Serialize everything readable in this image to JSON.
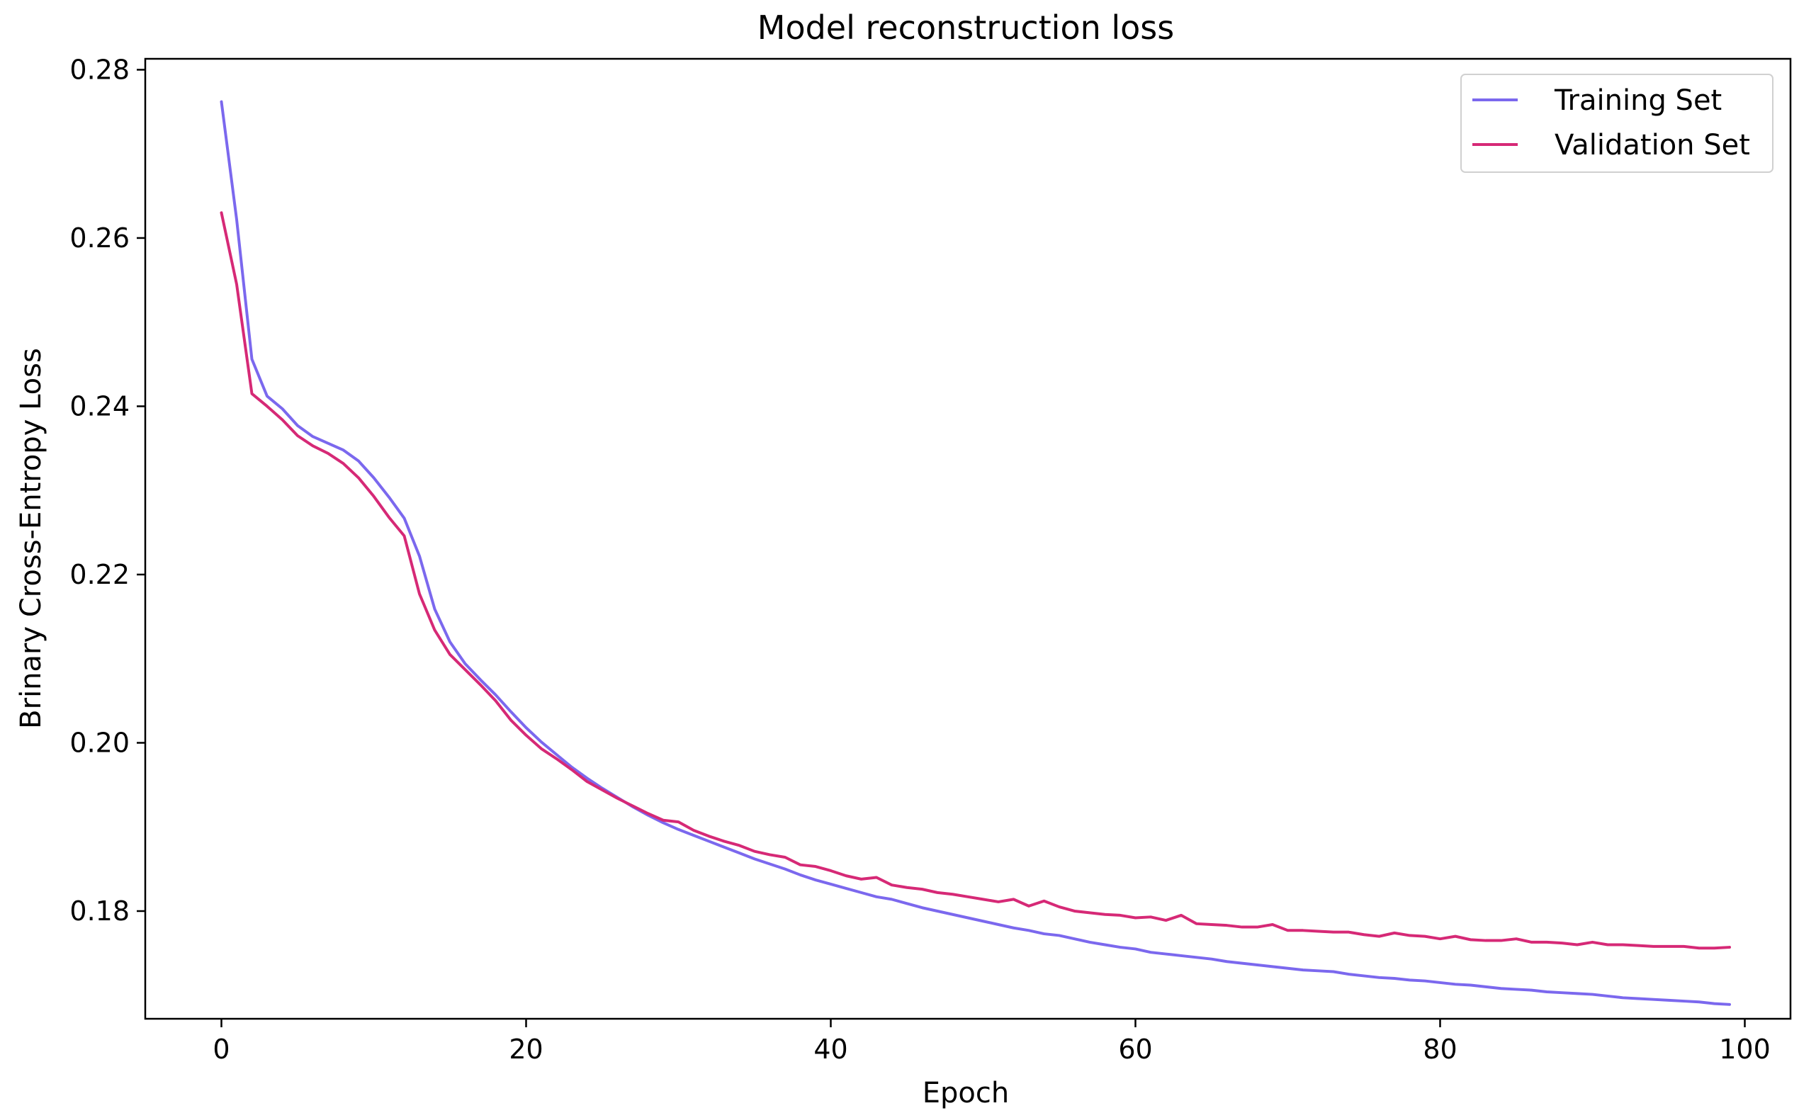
{
  "chart_data": {
    "type": "line",
    "title": "Model reconstruction loss",
    "xlabel": "Epoch",
    "ylabel": "Brinary Cross-Entropy Loss",
    "xlim": [
      -5,
      103
    ],
    "ylim": [
      0.1672,
      0.2813
    ],
    "xticks": [
      0,
      20,
      40,
      60,
      80,
      100
    ],
    "yticks": [
      0.18,
      0.2,
      0.22,
      0.24,
      0.26,
      0.28
    ],
    "ytick_labels": [
      "0.18",
      "0.20",
      "0.22",
      "0.24",
      "0.26",
      "0.28"
    ],
    "grid": false,
    "legend_position": "upper right",
    "series": [
      {
        "name": "Training Set",
        "color": "#7b68ee",
        "x": [
          0,
          1,
          2,
          3,
          4,
          5,
          6,
          7,
          8,
          9,
          10,
          11,
          12,
          13,
          14,
          15,
          16,
          17,
          18,
          19,
          20,
          21,
          22,
          23,
          24,
          25,
          26,
          27,
          28,
          29,
          30,
          31,
          32,
          33,
          34,
          35,
          36,
          37,
          38,
          39,
          40,
          41,
          42,
          43,
          44,
          45,
          46,
          47,
          48,
          49,
          50,
          51,
          52,
          53,
          54,
          55,
          56,
          57,
          58,
          59,
          60,
          61,
          62,
          63,
          64,
          65,
          66,
          67,
          68,
          69,
          70,
          71,
          72,
          73,
          74,
          75,
          76,
          77,
          78,
          79,
          80,
          81,
          82,
          83,
          84,
          85,
          86,
          87,
          88,
          89,
          90,
          91,
          92,
          93,
          94,
          95,
          96,
          97,
          98,
          99
        ],
        "values": [
          0.2762,
          0.2622,
          0.2456,
          0.2412,
          0.2397,
          0.2377,
          0.2364,
          0.2356,
          0.2348,
          0.2335,
          0.2315,
          0.2292,
          0.2267,
          0.2222,
          0.2159,
          0.212,
          0.2094,
          0.2075,
          0.2057,
          0.2037,
          0.2018,
          0.2001,
          0.1986,
          0.1971,
          0.1958,
          0.1946,
          0.1935,
          0.1924,
          0.1914,
          0.1905,
          0.1897,
          0.189,
          0.1883,
          0.1876,
          0.1869,
          0.1862,
          0.1856,
          0.185,
          0.1843,
          0.1837,
          0.1832,
          0.1827,
          0.1822,
          0.1817,
          0.1814,
          0.1809,
          0.1804,
          0.18,
          0.1796,
          0.1792,
          0.1788,
          0.1784,
          0.178,
          0.1777,
          0.1773,
          0.1771,
          0.1767,
          0.1763,
          0.176,
          0.1757,
          0.1755,
          0.1751,
          0.1749,
          0.1747,
          0.1745,
          0.1743,
          0.174,
          0.1738,
          0.1736,
          0.1734,
          0.1732,
          0.173,
          0.1729,
          0.1728,
          0.1725,
          0.1723,
          0.1721,
          0.172,
          0.1718,
          0.1717,
          0.1715,
          0.1713,
          0.1712,
          0.171,
          0.1708,
          0.1707,
          0.1706,
          0.1704,
          0.1703,
          0.1702,
          0.1701,
          0.1699,
          0.1697,
          0.1696,
          0.1695,
          0.1694,
          0.1693,
          0.1692,
          0.169,
          0.1689
        ]
      },
      {
        "name": "Validation Set",
        "color": "#d62976",
        "x": [
          0,
          1,
          2,
          3,
          4,
          5,
          6,
          7,
          8,
          9,
          10,
          11,
          12,
          13,
          14,
          15,
          16,
          17,
          18,
          19,
          20,
          21,
          22,
          23,
          24,
          25,
          26,
          27,
          28,
          29,
          30,
          31,
          32,
          33,
          34,
          35,
          36,
          37,
          38,
          39,
          40,
          41,
          42,
          43,
          44,
          45,
          46,
          47,
          48,
          49,
          50,
          51,
          52,
          53,
          54,
          55,
          56,
          57,
          58,
          59,
          60,
          61,
          62,
          63,
          64,
          65,
          66,
          67,
          68,
          69,
          70,
          71,
          72,
          73,
          74,
          75,
          76,
          77,
          78,
          79,
          80,
          81,
          82,
          83,
          84,
          85,
          86,
          87,
          88,
          89,
          90,
          91,
          92,
          93,
          94,
          95,
          96,
          97,
          98,
          99
        ],
        "values": [
          0.263,
          0.2545,
          0.2415,
          0.24,
          0.2384,
          0.2365,
          0.2353,
          0.2344,
          0.2332,
          0.2315,
          0.2293,
          0.2268,
          0.2246,
          0.2177,
          0.2134,
          0.2105,
          0.2087,
          0.2069,
          0.205,
          0.2027,
          0.2009,
          0.1993,
          0.1981,
          0.1968,
          0.1954,
          0.1944,
          0.1934,
          0.1925,
          0.1916,
          0.1908,
          0.1906,
          0.1896,
          0.1889,
          0.1883,
          0.1878,
          0.1871,
          0.1867,
          0.1864,
          0.1855,
          0.1853,
          0.1848,
          0.1842,
          0.1838,
          0.184,
          0.1831,
          0.1828,
          0.1826,
          0.1822,
          0.182,
          0.1817,
          0.1814,
          0.1811,
          0.1814,
          0.1806,
          0.1812,
          0.1805,
          0.18,
          0.1798,
          0.1796,
          0.1795,
          0.1792,
          0.1793,
          0.1789,
          0.1795,
          0.1785,
          0.1784,
          0.1783,
          0.1781,
          0.1781,
          0.1784,
          0.1777,
          0.1777,
          0.1776,
          0.1775,
          0.1775,
          0.1772,
          0.177,
          0.1774,
          0.1771,
          0.177,
          0.1767,
          0.177,
          0.1766,
          0.1765,
          0.1765,
          0.1767,
          0.1763,
          0.1763,
          0.1762,
          0.176,
          0.1763,
          0.176,
          0.176,
          0.1759,
          0.1758,
          0.1758,
          0.1758,
          0.1756,
          0.1756,
          0.1757
        ]
      }
    ]
  }
}
